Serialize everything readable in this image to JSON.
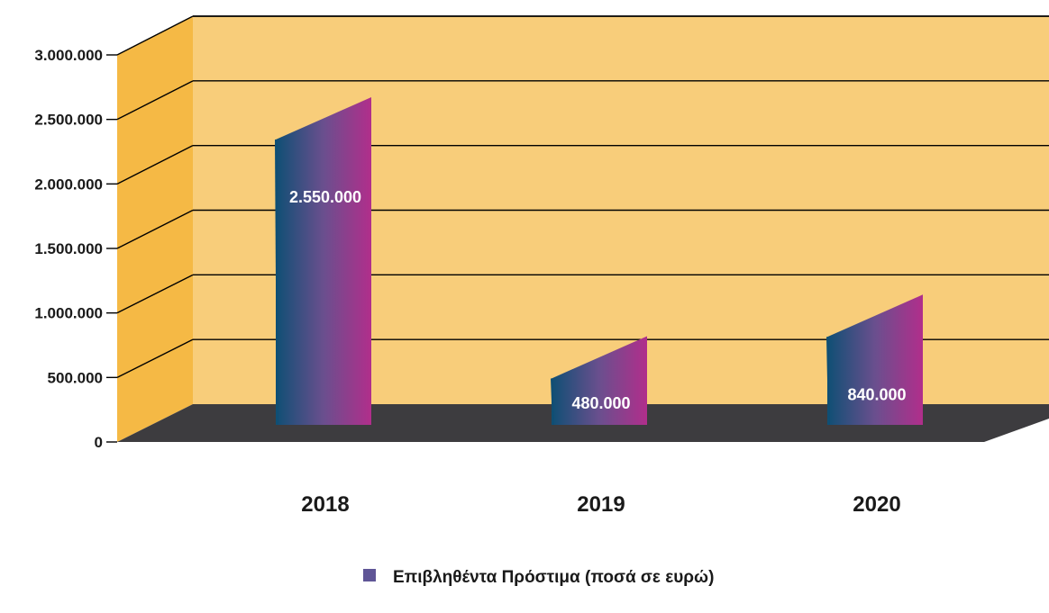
{
  "chart_data": {
    "type": "bar",
    "categories": [
      "2018",
      "2019",
      "2020"
    ],
    "series": [
      {
        "name": "Επιβληθέντα Πρόστιμα (ποσά σε ευρώ)",
        "values": [
          2550000,
          480000,
          840000
        ],
        "data_labels": [
          "2.550.000",
          "480.000",
          "840.000"
        ]
      }
    ],
    "ylim": [
      0,
      3000000
    ],
    "yticks": [
      0,
      500000,
      1000000,
      1500000,
      2000000,
      2500000,
      3000000
    ],
    "ytick_labels": [
      "0",
      "500.000",
      "1.000.000",
      "1.500.000",
      "2.000.000",
      "2.500.000",
      "3.000.000"
    ],
    "grid": true,
    "legend_position": "bottom",
    "colors": {
      "wall": "#f8cd7a",
      "side_wall": "#f5b945",
      "floor": "#3d3c3f",
      "bar_start": "#0f4f74",
      "bar_mid": "#6a4f8e",
      "bar_end": "#b12e8b",
      "legend_swatch": "#5f5596"
    }
  }
}
